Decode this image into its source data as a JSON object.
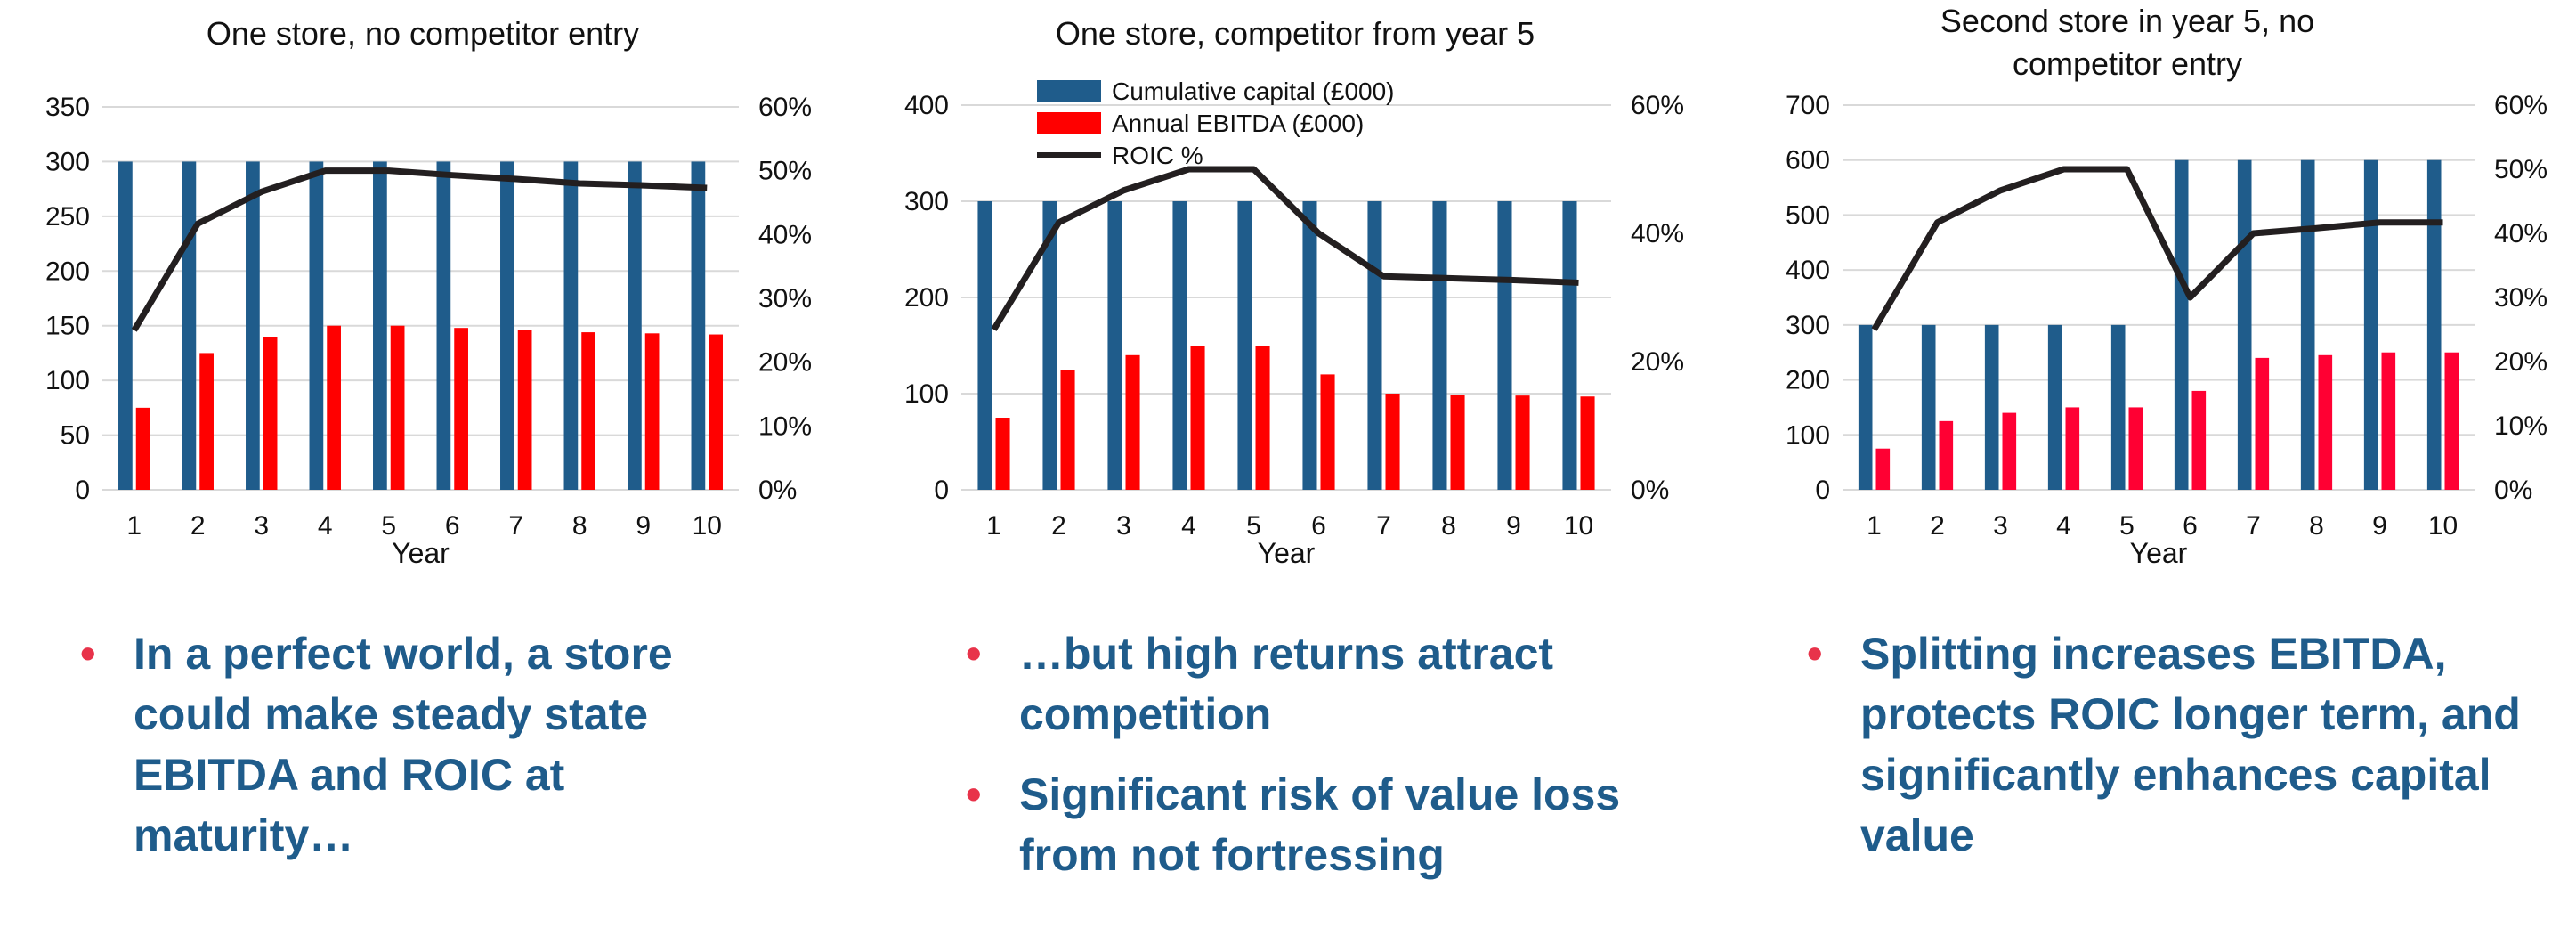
{
  "chart_data": [
    {
      "type": "bar",
      "title": "One store, no competitor entry",
      "xlabel": "Year",
      "categories": [
        "1",
        "2",
        "3",
        "4",
        "5",
        "6",
        "7",
        "8",
        "9",
        "10"
      ],
      "ylim": [
        0,
        350
      ],
      "y_ticks": [
        "0",
        "50",
        "100",
        "150",
        "200",
        "250",
        "300",
        "350"
      ],
      "y2lim": [
        0,
        60
      ],
      "y2_ticks": [
        "0%",
        "10%",
        "20%",
        "30%",
        "40%",
        "50%",
        "60%"
      ],
      "grid": true,
      "series": [
        {
          "name": "Cumulative capital (£000)",
          "axis": "left",
          "color": "#1f5c8b",
          "values": [
            300,
            300,
            300,
            300,
            300,
            300,
            300,
            300,
            300,
            300
          ]
        },
        {
          "name": "Annual EBITDA (£000)",
          "axis": "left",
          "color": "#ff0000",
          "values": [
            75,
            125,
            140,
            150,
            150,
            148,
            146,
            144,
            143,
            142
          ]
        },
        {
          "name": "ROIC %",
          "axis": "right",
          "type": "line",
          "color": "#231f20",
          "values": [
            25,
            41.7,
            46.7,
            50,
            50,
            49.3,
            48.7,
            48,
            47.7,
            47.3
          ]
        }
      ]
    },
    {
      "type": "bar",
      "title": "One store, competitor from year 5",
      "xlabel": "Year",
      "categories": [
        "1",
        "2",
        "3",
        "4",
        "5",
        "6",
        "7",
        "8",
        "9",
        "10"
      ],
      "ylim": [
        0,
        400
      ],
      "y_ticks": [
        "0",
        "100",
        "200",
        "300",
        "400"
      ],
      "y2lim": [
        0,
        60
      ],
      "y2_ticks": [
        "0%",
        "20%",
        "40%",
        "60%"
      ],
      "grid": true,
      "legend_position": "top-left",
      "legend": [
        "Cumulative capital (£000)",
        "Annual EBITDA (£000)",
        "ROIC %"
      ],
      "series": [
        {
          "name": "Cumulative capital (£000)",
          "axis": "left",
          "color": "#1f5c8b",
          "values": [
            300,
            300,
            300,
            300,
            300,
            300,
            300,
            300,
            300,
            300
          ]
        },
        {
          "name": "Annual EBITDA (£000)",
          "axis": "left",
          "color": "#ff0000",
          "values": [
            75,
            125,
            140,
            150,
            150,
            120,
            100,
            99,
            98,
            97
          ]
        },
        {
          "name": "ROIC %",
          "axis": "right",
          "type": "line",
          "color": "#231f20",
          "values": [
            25,
            41.7,
            46.7,
            50,
            50,
            40,
            33.3,
            33,
            32.7,
            32.3
          ]
        }
      ]
    },
    {
      "type": "bar",
      "title": "Second store in year 5, no competitor entry",
      "xlabel": "Year",
      "categories": [
        "1",
        "2",
        "3",
        "4",
        "5",
        "6",
        "7",
        "8",
        "9",
        "10"
      ],
      "ylim": [
        0,
        700
      ],
      "y_ticks": [
        "0",
        "100",
        "200",
        "300",
        "400",
        "500",
        "600",
        "700"
      ],
      "y2lim": [
        0,
        60
      ],
      "y2_ticks": [
        "0%",
        "10%",
        "20%",
        "30%",
        "40%",
        "50%",
        "60%"
      ],
      "grid": true,
      "series": [
        {
          "name": "Cumulative capital (£000)",
          "axis": "left",
          "color": "#1f5c8b",
          "values": [
            300,
            300,
            300,
            300,
            300,
            600,
            600,
            600,
            600,
            600
          ]
        },
        {
          "name": "Annual EBITDA (£000)",
          "axis": "left",
          "color": "#ff0033",
          "values": [
            75,
            125,
            140,
            150,
            150,
            180,
            240,
            245,
            250,
            250
          ]
        },
        {
          "name": "ROIC %",
          "axis": "right",
          "type": "line",
          "color": "#231f20",
          "values": [
            25,
            41.7,
            46.7,
            50,
            50,
            30,
            40,
            40.8,
            41.7,
            41.7
          ]
        }
      ]
    }
  ],
  "bullets": {
    "left": [
      "In a perfect world, a store could make steady state EBITDA and ROIC at maturity…"
    ],
    "middle": [
      "…but high returns attract competition",
      "Significant risk of value loss from not fortressing"
    ],
    "right": [
      "Splitting increases EBITDA, protects ROIC longer term, and significantly enhances capital value"
    ]
  },
  "bullet_color": "#e8334a",
  "text_color": "#1f5c8b"
}
